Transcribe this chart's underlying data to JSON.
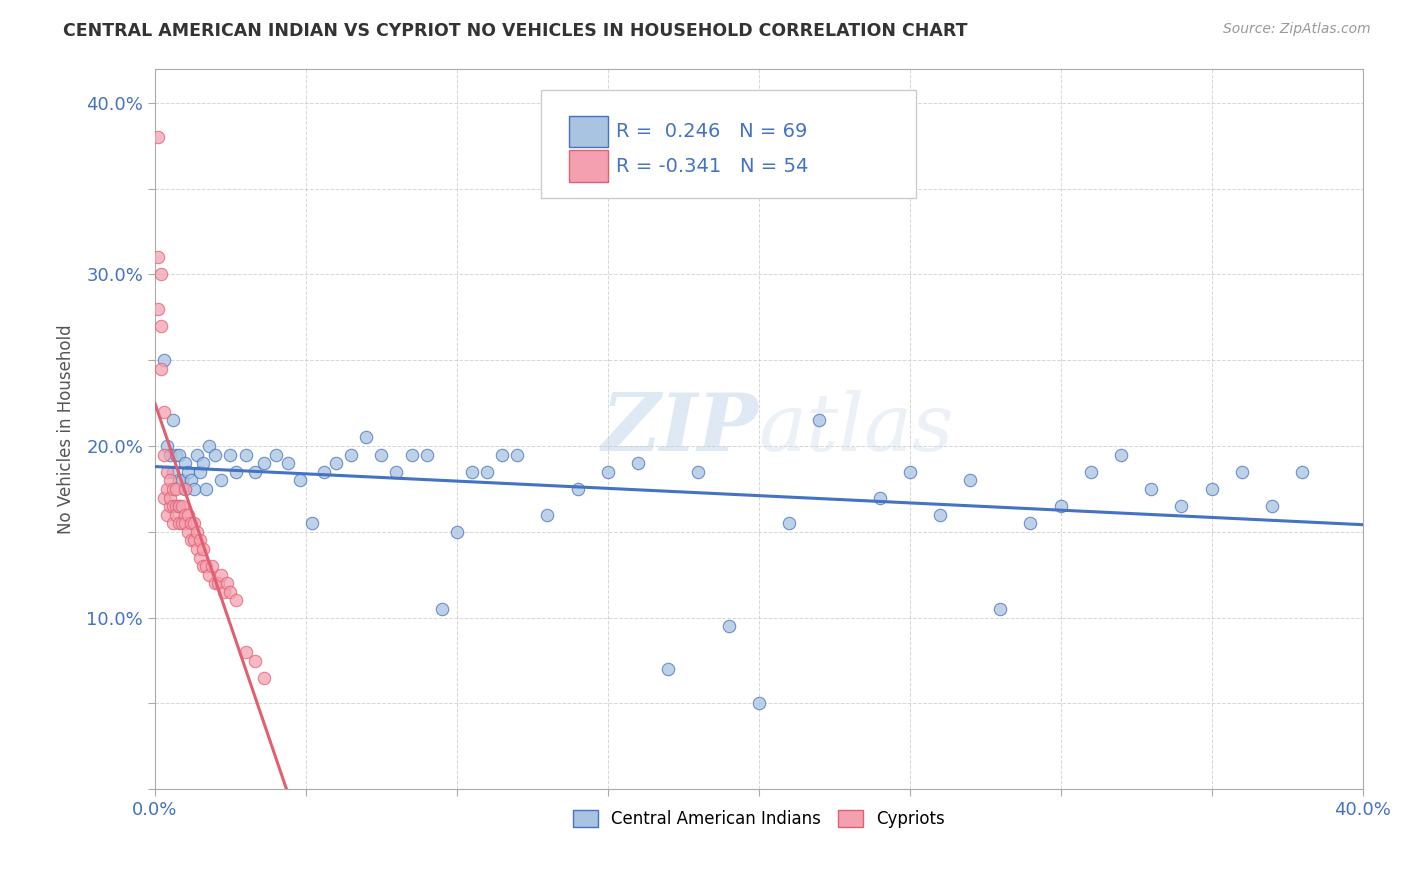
{
  "title": "CENTRAL AMERICAN INDIAN VS CYPRIOT NO VEHICLES IN HOUSEHOLD CORRELATION CHART",
  "source": "Source: ZipAtlas.com",
  "ylabel": "No Vehicles in Household",
  "xlim": [
    0.0,
    0.4
  ],
  "ylim": [
    0.0,
    0.42
  ],
  "xticks": [
    0.0,
    0.05,
    0.1,
    0.15,
    0.2,
    0.25,
    0.3,
    0.35,
    0.4
  ],
  "yticks": [
    0.0,
    0.05,
    0.1,
    0.15,
    0.2,
    0.25,
    0.3,
    0.35,
    0.4
  ],
  "xtick_labels": [
    "0.0%",
    "",
    "",
    "",
    "",
    "",
    "",
    "",
    "40.0%"
  ],
  "ytick_labels": [
    "",
    "",
    "10.0%",
    "",
    "20.0%",
    "",
    "30.0%",
    "",
    "40.0%"
  ],
  "r_cai": 0.246,
  "n_cai": 69,
  "r_cyp": -0.341,
  "n_cyp": 54,
  "cai_color": "#a8c4e0",
  "cyp_color": "#f4a0b0",
  "cai_line_color": "#4472c4",
  "cyp_line_color": "#e06070",
  "watermark": "ZIPatlas",
  "legend_label_cai": "Central American Indians",
  "legend_label_cyp": "Cypriots",
  "cai_x": [
    0.003,
    0.004,
    0.005,
    0.006,
    0.006,
    0.007,
    0.008,
    0.008,
    0.009,
    0.01,
    0.01,
    0.011,
    0.012,
    0.013,
    0.014,
    0.015,
    0.016,
    0.017,
    0.018,
    0.02,
    0.022,
    0.025,
    0.027,
    0.03,
    0.033,
    0.036,
    0.04,
    0.044,
    0.048,
    0.052,
    0.056,
    0.06,
    0.065,
    0.07,
    0.075,
    0.08,
    0.085,
    0.09,
    0.095,
    0.1,
    0.105,
    0.11,
    0.115,
    0.12,
    0.13,
    0.14,
    0.15,
    0.16,
    0.17,
    0.18,
    0.19,
    0.2,
    0.21,
    0.22,
    0.24,
    0.25,
    0.26,
    0.27,
    0.28,
    0.29,
    0.3,
    0.31,
    0.32,
    0.33,
    0.34,
    0.35,
    0.36,
    0.37,
    0.38
  ],
  "cai_y": [
    0.25,
    0.2,
    0.195,
    0.215,
    0.185,
    0.195,
    0.18,
    0.195,
    0.18,
    0.19,
    0.175,
    0.185,
    0.18,
    0.175,
    0.195,
    0.185,
    0.19,
    0.175,
    0.2,
    0.195,
    0.18,
    0.195,
    0.185,
    0.195,
    0.185,
    0.19,
    0.195,
    0.19,
    0.18,
    0.155,
    0.185,
    0.19,
    0.195,
    0.205,
    0.195,
    0.185,
    0.195,
    0.195,
    0.105,
    0.15,
    0.185,
    0.185,
    0.195,
    0.195,
    0.16,
    0.175,
    0.185,
    0.19,
    0.07,
    0.185,
    0.095,
    0.05,
    0.155,
    0.215,
    0.17,
    0.185,
    0.16,
    0.18,
    0.105,
    0.155,
    0.165,
    0.185,
    0.195,
    0.175,
    0.165,
    0.175,
    0.185,
    0.165,
    0.185
  ],
  "cyp_x": [
    0.001,
    0.001,
    0.001,
    0.002,
    0.002,
    0.002,
    0.003,
    0.003,
    0.003,
    0.004,
    0.004,
    0.004,
    0.005,
    0.005,
    0.005,
    0.006,
    0.006,
    0.006,
    0.007,
    0.007,
    0.007,
    0.008,
    0.008,
    0.008,
    0.009,
    0.009,
    0.01,
    0.01,
    0.01,
    0.011,
    0.011,
    0.012,
    0.012,
    0.013,
    0.013,
    0.014,
    0.014,
    0.015,
    0.015,
    0.016,
    0.016,
    0.017,
    0.018,
    0.019,
    0.02,
    0.021,
    0.022,
    0.023,
    0.024,
    0.025,
    0.027,
    0.03,
    0.033,
    0.036
  ],
  "cyp_y": [
    0.38,
    0.31,
    0.28,
    0.3,
    0.27,
    0.245,
    0.22,
    0.195,
    0.17,
    0.185,
    0.175,
    0.16,
    0.18,
    0.165,
    0.17,
    0.175,
    0.165,
    0.155,
    0.165,
    0.175,
    0.16,
    0.165,
    0.155,
    0.165,
    0.155,
    0.165,
    0.16,
    0.175,
    0.155,
    0.16,
    0.15,
    0.155,
    0.145,
    0.155,
    0.145,
    0.14,
    0.15,
    0.135,
    0.145,
    0.13,
    0.14,
    0.13,
    0.125,
    0.13,
    0.12,
    0.12,
    0.125,
    0.115,
    0.12,
    0.115,
    0.11,
    0.08,
    0.075,
    0.065
  ]
}
